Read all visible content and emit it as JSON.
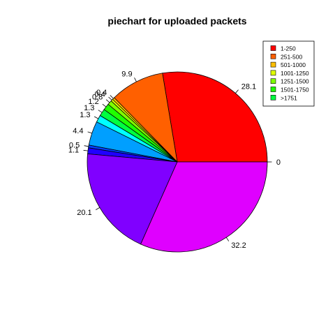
{
  "chart_data": {
    "type": "pie",
    "title": "piechart for uploaded packets",
    "slices": [
      {
        "label": "28.1",
        "value": 28.1,
        "color": "#FF0000"
      },
      {
        "label": "9.9",
        "value": 9.9,
        "color": "#FF6000"
      },
      {
        "label": "0.4",
        "value": 0.4,
        "color": "#FFBF00"
      },
      {
        "label": "0.4",
        "value": 0.4,
        "color": "#DFFF00"
      },
      {
        "label": "0.8",
        "value": 0.8,
        "color": "#80FF00"
      },
      {
        "label": "1.2",
        "value": 1.2,
        "color": "#20FF00"
      },
      {
        "label": "1.3",
        "value": 1.3,
        "color": "#00FF40"
      },
      {
        "label": "",
        "value": 0.0,
        "color": "#00FF9F"
      },
      {
        "label": "1.3",
        "value": 1.3,
        "color": "#00FFFF"
      },
      {
        "label": "4.4",
        "value": 4.4,
        "color": "#009FFF"
      },
      {
        "label": "0.5",
        "value": 0.5,
        "color": "#0040FF"
      },
      {
        "label": "1.1",
        "value": 1.1,
        "color": "#2000FF"
      },
      {
        "label": "20.1",
        "value": 20.1,
        "color": "#8000FF"
      },
      {
        "label": "32.2",
        "value": 32.2,
        "color": "#DF00FF"
      },
      {
        "label": "0",
        "value": 0.0,
        "color": "#FF00BF"
      }
    ],
    "legend": {
      "position": "top-right",
      "entries": [
        {
          "label": "1-250",
          "color": "#FF0000"
        },
        {
          "label": "251-500",
          "color": "#FF6000"
        },
        {
          "label": "501-1000",
          "color": "#FFBF00"
        },
        {
          "label": "1001-1250",
          "color": "#DFFF00"
        },
        {
          "label": "1251-1500",
          "color": "#80FF00"
        },
        {
          "label": "1501-1750",
          "color": "#20FF00"
        },
        {
          "label": ">1751",
          "color": "#00FF40"
        }
      ]
    }
  }
}
